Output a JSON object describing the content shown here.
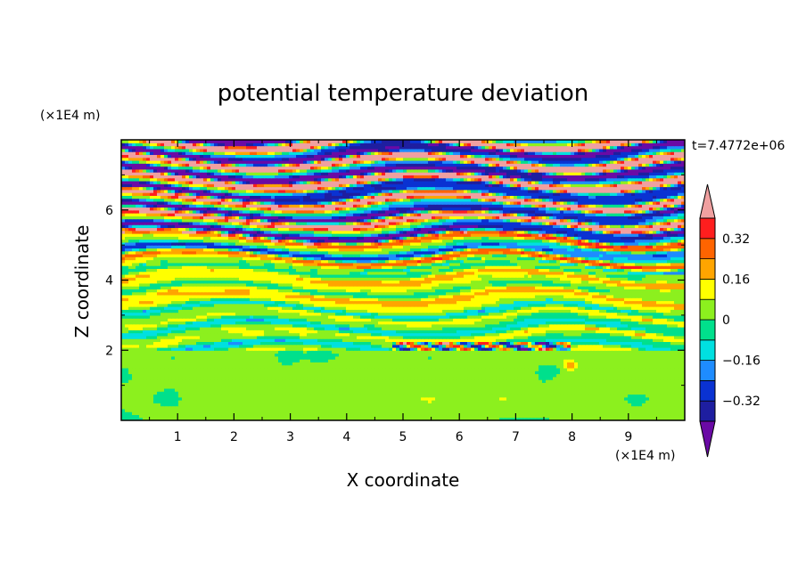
{
  "chart_data": {
    "type": "heatmap",
    "title": "potential temperature deviation",
    "xlabel": "X coordinate",
    "ylabel": "Z coordinate",
    "x_unit": "(×1E4 m)",
    "y_unit": "(×1E4 m)",
    "time_label": "t=7.4772e+06",
    "xlim": [
      0,
      10
    ],
    "ylim": [
      0,
      8
    ],
    "x_ticks": [
      "1",
      "2",
      "3",
      "4",
      "5",
      "6",
      "7",
      "8",
      "9"
    ],
    "y_ticks": [
      "2",
      "4",
      "6"
    ],
    "colorbar": {
      "levels": [
        -0.4,
        -0.32,
        -0.24,
        -0.16,
        -0.08,
        0,
        0.08,
        0.16,
        0.24,
        0.32,
        0.4
      ],
      "tick_labels": [
        "0.32",
        "0.16",
        "0",
        "−0.16",
        "−0.32"
      ],
      "colors_low_to_high": [
        "#6a0aa5",
        "#1e1ea0",
        "#0a32d2",
        "#1e8cff",
        "#00e0e0",
        "#00e08c",
        "#8cf01e",
        "#ffff00",
        "#ffa500",
        "#ff6400",
        "#ff1e1e",
        "#f0a0a0"
      ],
      "extend": "both"
    },
    "bands": [
      {
        "z": [
          0.0,
          2.0
        ],
        "dominant_level": 0.04,
        "pattern": "green and light-green blobs"
      },
      {
        "z": [
          2.0,
          3.2
        ],
        "dominant_level": 0.0,
        "pattern": "green with cyan, blue and pink streaks"
      },
      {
        "z": [
          3.2,
          4.4
        ],
        "dominant_level": 0.1,
        "pattern": "green and yellow layers"
      },
      {
        "z": [
          4.4,
          5.2
        ],
        "dominant_level": 0.0,
        "pattern": "mixed red, yellow, blue, purple streaks"
      },
      {
        "z": [
          5.2,
          6.6
        ],
        "dominant_level": 0.0,
        "pattern": "alternating purple and pink layers"
      },
      {
        "z": [
          6.6,
          8.0
        ],
        "dominant_level": 0.0,
        "pattern": "thick purple and pink layers"
      }
    ]
  }
}
